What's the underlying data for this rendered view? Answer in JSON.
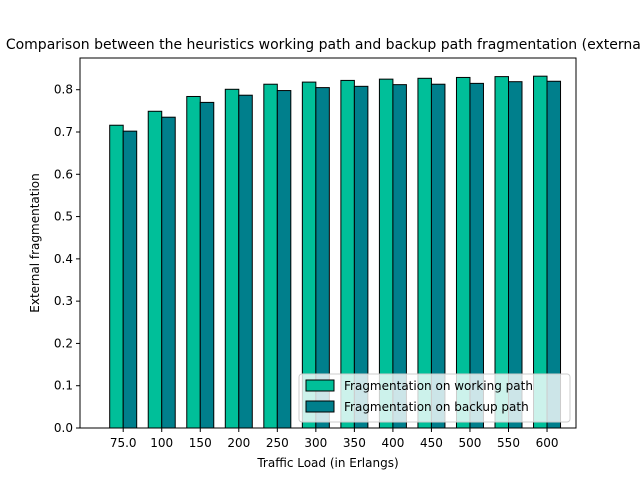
{
  "chart_data": {
    "type": "bar",
    "title": "Comparison between the heuristics working path and backup path fragmentation (external)",
    "xlabel": "Traffic Load (in Erlangs)",
    "ylabel": "External fragmentation",
    "categories": [
      "75.0",
      "100",
      "150",
      "200",
      "250",
      "300",
      "350",
      "400",
      "450",
      "500",
      "550",
      "600"
    ],
    "ylim": [
      0,
      0.875
    ],
    "yticks": [
      "0.0",
      "0.1",
      "0.2",
      "0.3",
      "0.4",
      "0.5",
      "0.6",
      "0.7",
      "0.8"
    ],
    "grid": false,
    "legend_position": "lower-right",
    "series": [
      {
        "name": "Fragmentation on working path",
        "color": "#00bf99",
        "values": [
          0.716,
          0.749,
          0.784,
          0.801,
          0.813,
          0.818,
          0.822,
          0.825,
          0.827,
          0.829,
          0.831,
          0.832
        ]
      },
      {
        "name": "Fragmentation on backup path",
        "color": "#007f8c",
        "values": [
          0.702,
          0.735,
          0.77,
          0.787,
          0.798,
          0.805,
          0.808,
          0.812,
          0.813,
          0.815,
          0.819,
          0.82
        ]
      }
    ]
  }
}
